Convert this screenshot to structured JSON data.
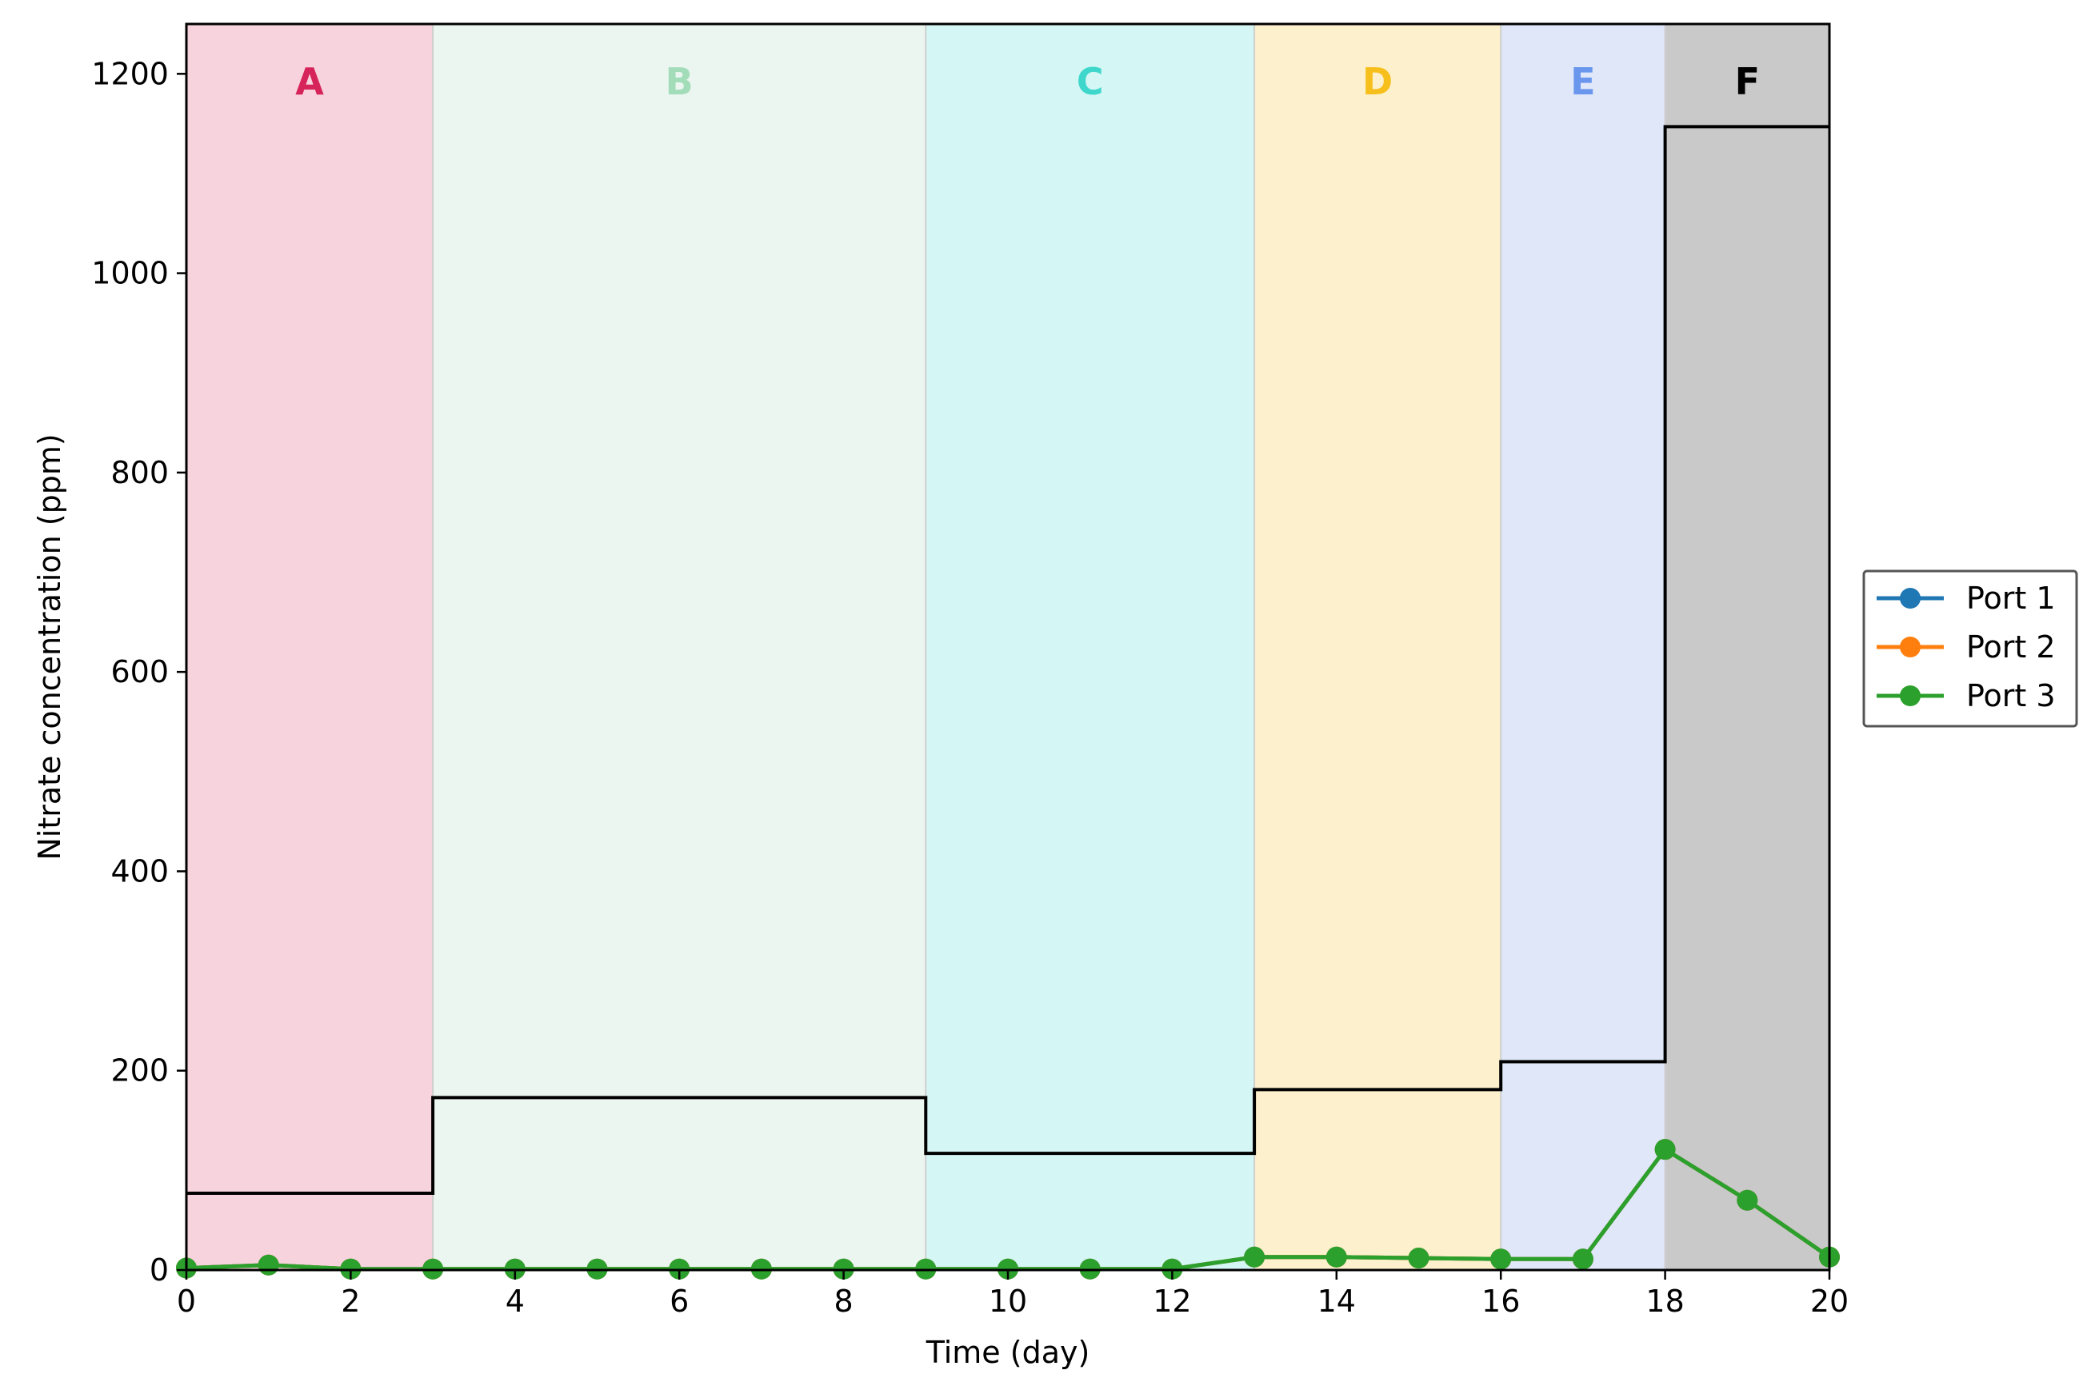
{
  "chart_data": {
    "type": "line",
    "title": "",
    "xlabel": "Time (day)",
    "ylabel": "Nitrate concentration (ppm)",
    "xlim": [
      0,
      20
    ],
    "ylim": [
      0,
      1250
    ],
    "xticks": [
      "0",
      "2",
      "4",
      "6",
      "8",
      "10",
      "12",
      "14",
      "16",
      "18",
      "20"
    ],
    "yticks": [
      "0",
      "200",
      "400",
      "600",
      "800",
      "1000",
      "1200"
    ],
    "grid": false,
    "legend_position": "outside-right",
    "phases": [
      {
        "label": "A",
        "start": 0,
        "end": 3,
        "fill": "#f7d3de",
        "label_color": "#d6245a"
      },
      {
        "label": "B",
        "start": 3,
        "end": 9,
        "fill": "#eaf6ef",
        "label_color": "#a3dcb8"
      },
      {
        "label": "C",
        "start": 9,
        "end": 13,
        "fill": "#d4f6f4",
        "label_color": "#3fd7cc"
      },
      {
        "label": "D",
        "start": 13,
        "end": 16,
        "fill": "#fdf0cc",
        "label_color": "#f7bf1b"
      },
      {
        "label": "E",
        "start": 16,
        "end": 18,
        "fill": "#dfe7f8",
        "label_color": "#6a96ee"
      },
      {
        "label": "F",
        "start": 18,
        "end": 20,
        "fill": "#c9c9c9",
        "label_color": "#000000"
      }
    ],
    "influent_step": {
      "color": "#000000",
      "steps": [
        {
          "start": 0,
          "end": 3,
          "value": 77
        },
        {
          "start": 3,
          "end": 9,
          "value": 173
        },
        {
          "start": 9,
          "end": 13,
          "value": 117
        },
        {
          "start": 13,
          "end": 16,
          "value": 181
        },
        {
          "start": 16,
          "end": 18,
          "value": 209
        },
        {
          "start": 18,
          "end": 20,
          "value": 1147
        }
      ]
    },
    "x": [
      0,
      1,
      2,
      3,
      4,
      5,
      6,
      7,
      8,
      9,
      10,
      11,
      12,
      13,
      14,
      15,
      16,
      17,
      18,
      19,
      20
    ],
    "series": [
      {
        "name": "Port 1",
        "color": "#1f77b4",
        "values": [
          2,
          5,
          1,
          1,
          1,
          1,
          1,
          1,
          1,
          1,
          1,
          1,
          1,
          13,
          13,
          12,
          11,
          11,
          121,
          70,
          13
        ]
      },
      {
        "name": "Port 2",
        "color": "#ff7f0e",
        "values": [
          2,
          5,
          1,
          1,
          1,
          1,
          1,
          1,
          1,
          1,
          1,
          1,
          1,
          13,
          13,
          12,
          11,
          11,
          121,
          70,
          13
        ]
      },
      {
        "name": "Port 3",
        "color": "#2ca02c",
        "values": [
          2,
          5,
          1,
          1,
          1,
          1,
          1,
          1,
          1,
          1,
          1,
          1,
          1,
          13,
          13,
          12,
          11,
          11,
          121,
          70,
          13
        ]
      }
    ]
  }
}
